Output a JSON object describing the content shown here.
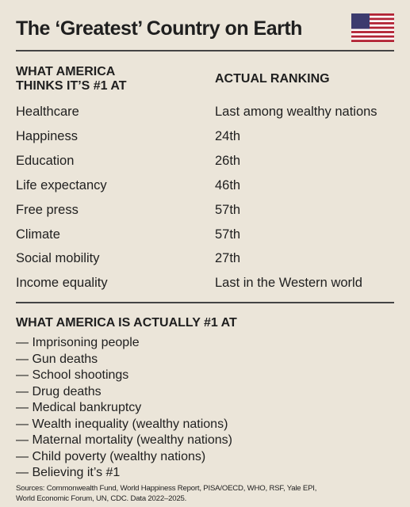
{
  "header": {
    "title": "The ‘Greatest’ Country on Earth"
  },
  "table": {
    "headers": [
      "WHAT AMERICA THINKS IT’S #1 AT",
      "ACTUAL RANKING"
    ],
    "rows": [
      [
        "Healthcare",
        "Last among wealthy nations"
      ],
      [
        "Happiness",
        "24th"
      ],
      [
        "Education",
        "26th"
      ],
      [
        "Life expectancy",
        "46th"
      ],
      [
        "Free press",
        "57th"
      ],
      [
        "Climate",
        "57th"
      ],
      [
        "Social mobility",
        "27th"
      ],
      [
        "Income equality",
        "Last in the Western world"
      ]
    ]
  },
  "list": {
    "heading": "WHAT AMERICA IS ACTUALLY #1 AT",
    "items": [
      "— Imprisoning people",
      "— Gun deaths",
      "— School shootings",
      "— Drug deaths",
      "— Medical bankruptcy",
      "— Wealth inequality (wealthy nations)",
      "— Maternal mortality (wealthy nations)",
      "— Child poverty (wealthy nations)",
      "— Believing it’s #1"
    ]
  },
  "sources": [
    "Sources: Commonwealth Fund, World Happiness Report, PISA/OECD, WHO, RSF, Yale EPI,",
    "World Economic Forum, UN, CDC. Data 2022–2025."
  ]
}
